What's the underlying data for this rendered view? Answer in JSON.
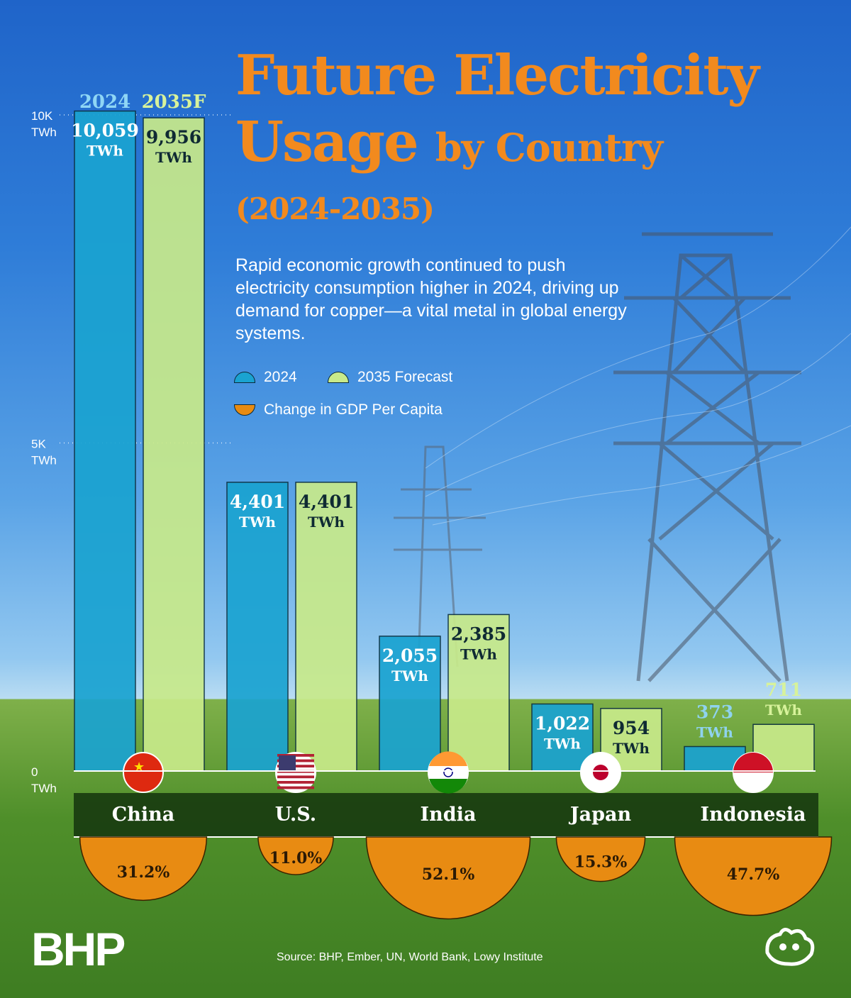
{
  "header": {
    "title_line1": "Future Electricity",
    "title_line2_a": "Usage",
    "title_line2_b": "by Country",
    "title_line3": "(2024-2035)",
    "description": "Rapid economic growth continued to push electricity consumption higher in 2024, driving up demand for copper—a vital metal in global energy systems."
  },
  "legend": {
    "items": [
      {
        "label": "2024"
      },
      {
        "label": "2035 Forecast"
      },
      {
        "label": "Change in GDP Per Capita"
      }
    ]
  },
  "footer": {
    "logo": "BHP",
    "source": "Source: BHP, Ember, UN, World Bank, Lowy Institute"
  },
  "colors": {
    "bar_2024": "#1aa3d1",
    "bar_2035": "#c8ea8a",
    "gdp": "#e88b12",
    "title": "#f28a1e",
    "band": "#173a10"
  },
  "chart_data": {
    "type": "bar",
    "ylabel": "TWh",
    "ylim": [
      0,
      10000
    ],
    "y_ticks": [
      {
        "value": 10000,
        "label": "10K",
        "unit": "TWh"
      },
      {
        "value": 5000,
        "label": "5K",
        "unit": "TWh"
      },
      {
        "value": 0,
        "label": "0",
        "unit": "TWh"
      }
    ],
    "series_headers": [
      "2024",
      "2035F"
    ],
    "categories": [
      "China",
      "U.S.",
      "India",
      "Japan",
      "Indonesia"
    ],
    "series": [
      {
        "name": "2024",
        "values": [
          10059,
          4401,
          2055,
          1022,
          373
        ],
        "labels": [
          "10,059",
          "4,401",
          "2,055",
          "1,022",
          "373"
        ]
      },
      {
        "name": "2035 Forecast",
        "values": [
          9956,
          4401,
          2385,
          954,
          711
        ],
        "labels": [
          "9,956",
          "4,401",
          "2,385",
          "954",
          "711"
        ]
      }
    ],
    "value_unit": "TWh",
    "gdp_change_pct": [
      31.2,
      11.0,
      52.1,
      15.3,
      47.7
    ],
    "gdp_change_labels": [
      "31.2%",
      "11.0%",
      "52.1%",
      "15.3%",
      "47.7%"
    ]
  }
}
